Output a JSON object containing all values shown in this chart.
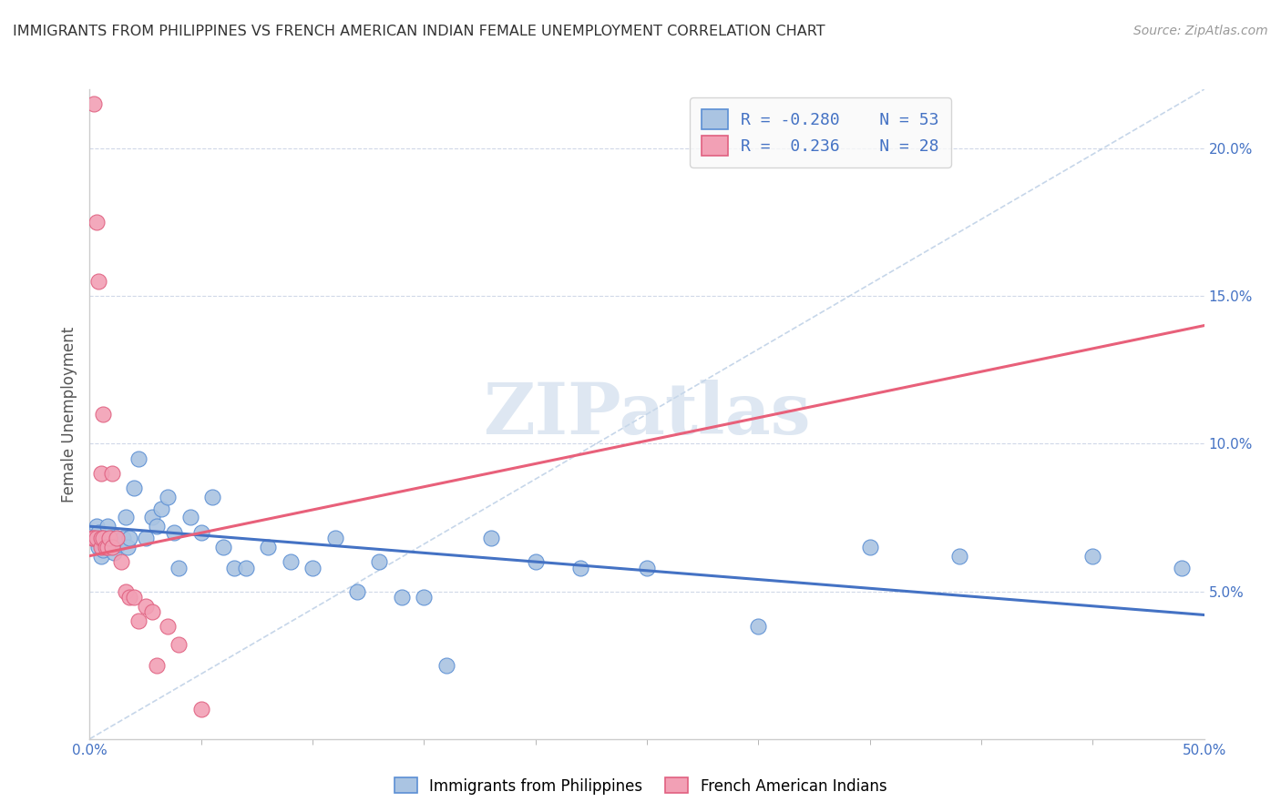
{
  "title": "IMMIGRANTS FROM PHILIPPINES VS FRENCH AMERICAN INDIAN FEMALE UNEMPLOYMENT CORRELATION CHART",
  "source": "Source: ZipAtlas.com",
  "ylabel": "Female Unemployment",
  "right_ytick_labels": [
    "5.0%",
    "10.0%",
    "15.0%",
    "20.0%"
  ],
  "right_ytick_vals": [
    0.05,
    0.1,
    0.15,
    0.2
  ],
  "legend_blue_label": "Immigrants from Philippines",
  "legend_pink_label": "French American Indians",
  "blue_color": "#aac4e2",
  "pink_color": "#f2a0b5",
  "blue_edge_color": "#5b8fd4",
  "pink_edge_color": "#e06080",
  "blue_line_color": "#4472c4",
  "pink_line_color": "#e8607a",
  "diag_line_color": "#b8cce4",
  "watermark": "ZIPatlas",
  "watermark_color": "#c8d8ea",
  "background_color": "#ffffff",
  "xmin": 0.0,
  "xmax": 0.5,
  "ymin": 0.0,
  "ymax": 0.22,
  "blue_points_x": [
    0.002,
    0.003,
    0.004,
    0.004,
    0.005,
    0.005,
    0.006,
    0.006,
    0.007,
    0.008,
    0.009,
    0.01,
    0.01,
    0.011,
    0.012,
    0.013,
    0.015,
    0.016,
    0.017,
    0.018,
    0.02,
    0.022,
    0.025,
    0.028,
    0.03,
    0.032,
    0.035,
    0.038,
    0.04,
    0.045,
    0.05,
    0.055,
    0.06,
    0.065,
    0.07,
    0.08,
    0.09,
    0.1,
    0.11,
    0.12,
    0.13,
    0.14,
    0.15,
    0.16,
    0.18,
    0.2,
    0.22,
    0.25,
    0.3,
    0.35,
    0.39,
    0.45,
    0.49
  ],
  "blue_points_y": [
    0.068,
    0.072,
    0.065,
    0.07,
    0.066,
    0.062,
    0.068,
    0.064,
    0.068,
    0.072,
    0.066,
    0.065,
    0.068,
    0.063,
    0.068,
    0.066,
    0.068,
    0.075,
    0.065,
    0.068,
    0.085,
    0.095,
    0.068,
    0.075,
    0.072,
    0.078,
    0.082,
    0.07,
    0.058,
    0.075,
    0.07,
    0.082,
    0.065,
    0.058,
    0.058,
    0.065,
    0.06,
    0.058,
    0.068,
    0.05,
    0.06,
    0.048,
    0.048,
    0.025,
    0.068,
    0.06,
    0.058,
    0.058,
    0.038,
    0.065,
    0.062,
    0.062,
    0.058
  ],
  "pink_points_x": [
    0.001,
    0.002,
    0.002,
    0.003,
    0.003,
    0.004,
    0.005,
    0.005,
    0.005,
    0.006,
    0.006,
    0.007,
    0.008,
    0.009,
    0.01,
    0.01,
    0.012,
    0.014,
    0.016,
    0.018,
    0.02,
    0.022,
    0.025,
    0.028,
    0.03,
    0.035,
    0.04,
    0.05
  ],
  "pink_points_y": [
    0.068,
    0.215,
    0.068,
    0.175,
    0.068,
    0.155,
    0.065,
    0.068,
    0.09,
    0.068,
    0.11,
    0.065,
    0.065,
    0.068,
    0.065,
    0.09,
    0.068,
    0.06,
    0.05,
    0.048,
    0.048,
    0.04,
    0.045,
    0.043,
    0.025,
    0.038,
    0.032,
    0.01
  ],
  "blue_trend_x": [
    0.0,
    0.5
  ],
  "blue_trend_y": [
    0.072,
    0.042
  ],
  "pink_trend_x": [
    0.0,
    0.5
  ],
  "pink_trend_y": [
    0.062,
    0.14
  ],
  "diag_line_x": [
    0.0,
    0.5
  ],
  "diag_line_y": [
    0.0,
    0.22
  ]
}
